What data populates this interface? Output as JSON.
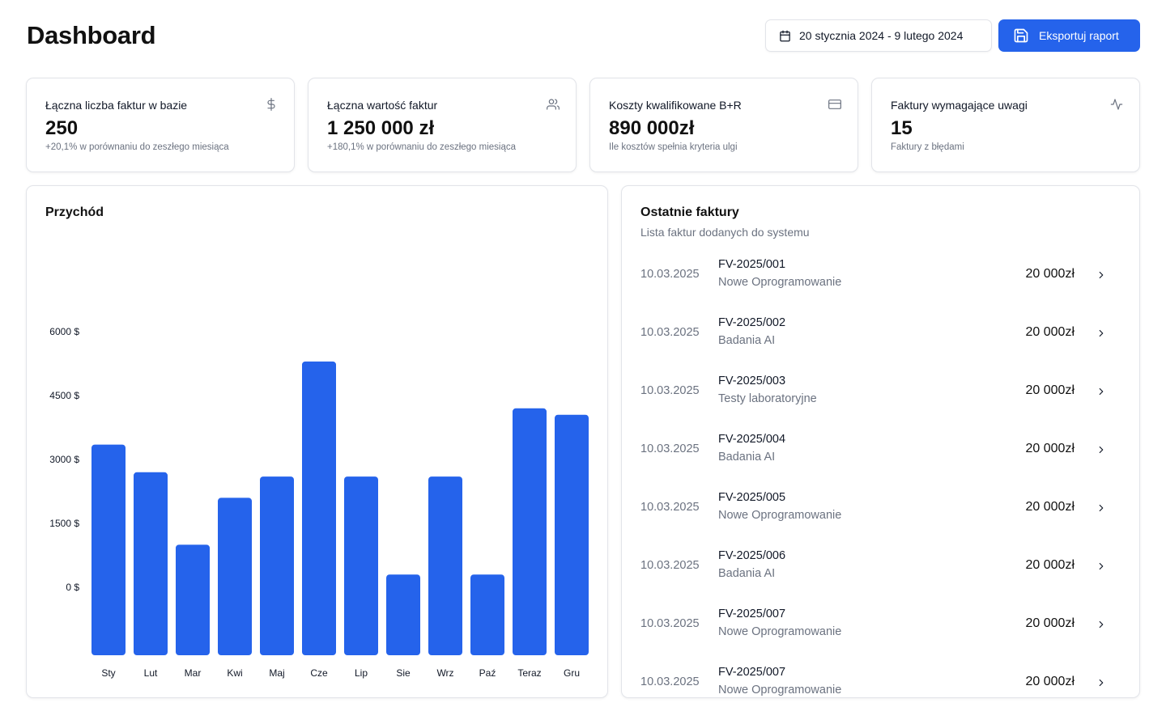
{
  "header": {
    "title": "Dashboard",
    "date_range": "20 stycznia 2024 - 9 lutego 2024",
    "export_label": "Eksportuj raport"
  },
  "colors": {
    "accent": "#2563eb",
    "muted": "#6b7280",
    "border": "#e2e4e9"
  },
  "stats": [
    {
      "title": "Łączna liczba faktur w bazie",
      "value": "250",
      "sub": "+20,1% w porównaniu do zeszłego miesiąca",
      "icon": "dollar-icon"
    },
    {
      "title": "Łączna wartość faktur",
      "value": "1 250 000 zł",
      "sub": "+180,1% w porównaniu do zeszłego miesiąca",
      "icon": "users-icon"
    },
    {
      "title": "Koszty kwalifikowane B+R",
      "value": "890 000zł",
      "sub": "Ile kosztów spełnia kryteria ulgi",
      "icon": "credit-card-icon"
    },
    {
      "title": "Faktury wymagające uwagi",
      "value": "15",
      "sub": "Faktury z błędami",
      "icon": "activity-icon"
    }
  ],
  "revenue": {
    "title": "Przychód"
  },
  "chart_data": {
    "type": "bar",
    "title": "Przychód",
    "categories": [
      "Sty",
      "Lut",
      "Mar",
      "Kwi",
      "Maj",
      "Cze",
      "Lip",
      "Sie",
      "Wrz",
      "Paź",
      "Teraz",
      "Gru"
    ],
    "values": [
      3350,
      2700,
      1000,
      2100,
      2600,
      5300,
      2600,
      300,
      2600,
      300,
      4200,
      4050
    ],
    "y_ticks": [
      "0 $",
      "1500 $",
      "3000 $",
      "4500 $",
      "6000 $"
    ],
    "y_tick_values": [
      0,
      1500,
      3000,
      4500,
      6000
    ],
    "ylim": [
      0,
      6000
    ],
    "color": "#2563eb",
    "grid": false
  },
  "invoices": {
    "title": "Ostatnie faktury",
    "subtitle": "Lista faktur dodanych do systemu",
    "rows": [
      {
        "date": "10.03.2025",
        "number": "FV-2025/001",
        "desc": "Nowe Oprogramowanie",
        "amount": "20 000zł"
      },
      {
        "date": "10.03.2025",
        "number": "FV-2025/002",
        "desc": "Badania AI",
        "amount": "20 000zł"
      },
      {
        "date": "10.03.2025",
        "number": "FV-2025/003",
        "desc": "Testy laboratoryjne",
        "amount": "20 000zł"
      },
      {
        "date": "10.03.2025",
        "number": "FV-2025/004",
        "desc": "Badania AI",
        "amount": "20 000zł"
      },
      {
        "date": "10.03.2025",
        "number": "FV-2025/005",
        "desc": "Nowe Oprogramowanie",
        "amount": "20 000zł"
      },
      {
        "date": "10.03.2025",
        "number": "FV-2025/006",
        "desc": "Badania AI",
        "amount": "20 000zł"
      },
      {
        "date": "10.03.2025",
        "number": "FV-2025/007",
        "desc": "Nowe Oprogramowanie",
        "amount": "20 000zł"
      },
      {
        "date": "10.03.2025",
        "number": "FV-2025/007",
        "desc": "Nowe Oprogramowanie",
        "amount": "20 000zł"
      }
    ]
  }
}
